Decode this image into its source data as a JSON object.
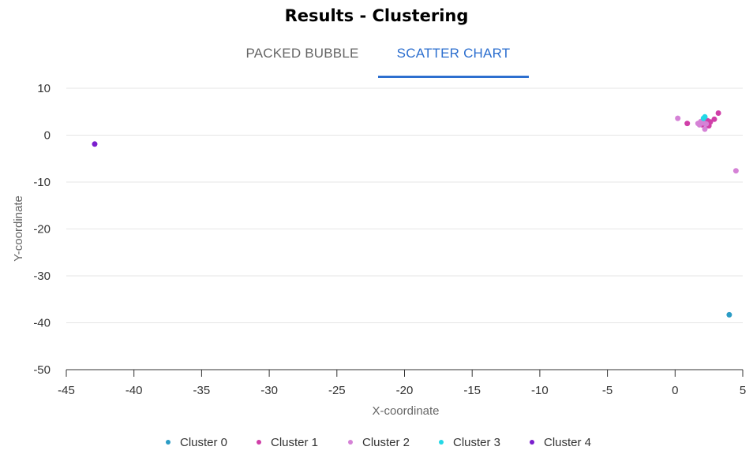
{
  "title": "Results - Clustering",
  "tabs": [
    {
      "label": "PACKED BUBBLE",
      "active": false
    },
    {
      "label": "SCATTER CHART",
      "active": true
    }
  ],
  "colors": {
    "accent": "#2d6fcf",
    "Cluster 0": "#2b9cc5",
    "Cluster 1": "#d03fa8",
    "Cluster 2": "#d582d6",
    "Cluster 3": "#23d8e6",
    "Cluster 4": "#7b1fce"
  },
  "chart_data": {
    "type": "scatter",
    "xlabel": "X-coordinate",
    "ylabel": "Y-coordinate",
    "xlim": [
      -45,
      5
    ],
    "ylim": [
      -50,
      10
    ],
    "xticks": [
      -45,
      -40,
      -35,
      -30,
      -25,
      -20,
      -15,
      -10,
      -5,
      0,
      5
    ],
    "yticks": [
      10,
      0,
      -10,
      -20,
      -30,
      -40,
      -50
    ],
    "grid": "horizontal",
    "legend_position": "bottom",
    "series": [
      {
        "name": "Cluster 0",
        "points": [
          [
            4.0,
            -38.3
          ]
        ]
      },
      {
        "name": "Cluster 1",
        "points": [
          [
            0.9,
            2.5
          ],
          [
            2.0,
            2.2
          ],
          [
            2.4,
            3.1
          ],
          [
            2.5,
            2.0
          ],
          [
            2.9,
            3.4
          ],
          [
            3.2,
            4.7
          ],
          [
            2.2,
            3.3
          ],
          [
            2.6,
            2.8
          ]
        ]
      },
      {
        "name": "Cluster 2",
        "points": [
          [
            0.2,
            3.6
          ],
          [
            1.7,
            2.5
          ],
          [
            1.9,
            2.9
          ],
          [
            2.1,
            2.6
          ],
          [
            2.2,
            1.3
          ],
          [
            4.5,
            -7.6
          ],
          [
            1.8,
            2.2
          ],
          [
            2.3,
            2.4
          ]
        ]
      },
      {
        "name": "Cluster 3",
        "points": [
          [
            2.2,
            3.9
          ],
          [
            2.1,
            3.6
          ]
        ]
      },
      {
        "name": "Cluster 4",
        "points": [
          [
            -42.9,
            -1.9
          ]
        ]
      }
    ]
  }
}
